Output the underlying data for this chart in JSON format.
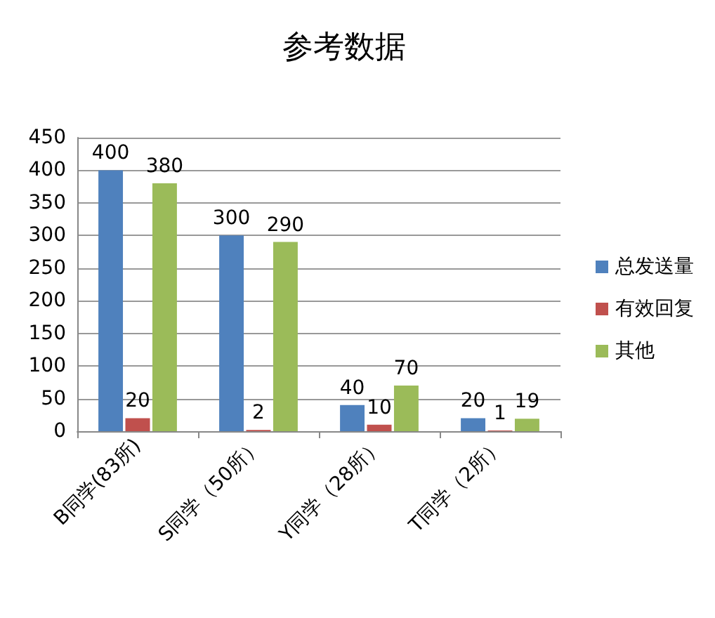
{
  "chart_data": {
    "type": "bar",
    "title": "参考数据",
    "categories": [
      "B同学(83所)",
      "S同学（50所）",
      "Y同学（28所）",
      "T同学（2所）"
    ],
    "series": [
      {
        "name": "总发送量",
        "color": "#4f81bd",
        "values": [
          400,
          300,
          40,
          20
        ]
      },
      {
        "name": "有效回复",
        "color": "#c0504d",
        "values": [
          20,
          2,
          10,
          1
        ]
      },
      {
        "name": "其他",
        "color": "#9bbb59",
        "values": [
          380,
          290,
          70,
          19
        ]
      }
    ],
    "ylim": [
      0,
      450
    ],
    "yticks": [
      0,
      50,
      100,
      150,
      200,
      250,
      300,
      350,
      400,
      450
    ],
    "grid": "y",
    "legend": "right",
    "data_labels": true
  }
}
